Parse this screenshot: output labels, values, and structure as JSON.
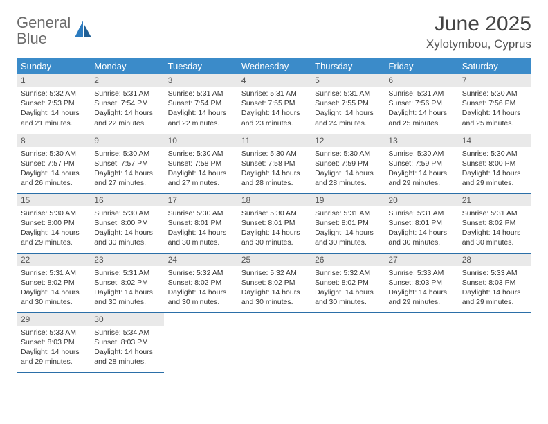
{
  "brand": {
    "word1": "General",
    "word2": "Blue"
  },
  "title": "June 2025",
  "location": "Xylotymbou, Cyprus",
  "colors": {
    "header_bg": "#3b8bc9",
    "header_text": "#ffffff",
    "daynum_bg": "#e9e9e9",
    "row_border": "#2b6fa8",
    "logo_gray": "#6b6b6b",
    "logo_blue": "#2b7bbf",
    "background": "#ffffff"
  },
  "typography": {
    "title_fontsize": 30,
    "location_fontsize": 17,
    "header_fontsize": 13,
    "daynum_fontsize": 12,
    "cell_fontsize": 10.5
  },
  "weekdays": [
    "Sunday",
    "Monday",
    "Tuesday",
    "Wednesday",
    "Thursday",
    "Friday",
    "Saturday"
  ],
  "weeks": [
    [
      {
        "day": "1",
        "sunrise": "Sunrise: 5:32 AM",
        "sunset": "Sunset: 7:53 PM",
        "daylight": "Daylight: 14 hours and 21 minutes."
      },
      {
        "day": "2",
        "sunrise": "Sunrise: 5:31 AM",
        "sunset": "Sunset: 7:54 PM",
        "daylight": "Daylight: 14 hours and 22 minutes."
      },
      {
        "day": "3",
        "sunrise": "Sunrise: 5:31 AM",
        "sunset": "Sunset: 7:54 PM",
        "daylight": "Daylight: 14 hours and 22 minutes."
      },
      {
        "day": "4",
        "sunrise": "Sunrise: 5:31 AM",
        "sunset": "Sunset: 7:55 PM",
        "daylight": "Daylight: 14 hours and 23 minutes."
      },
      {
        "day": "5",
        "sunrise": "Sunrise: 5:31 AM",
        "sunset": "Sunset: 7:55 PM",
        "daylight": "Daylight: 14 hours and 24 minutes."
      },
      {
        "day": "6",
        "sunrise": "Sunrise: 5:31 AM",
        "sunset": "Sunset: 7:56 PM",
        "daylight": "Daylight: 14 hours and 25 minutes."
      },
      {
        "day": "7",
        "sunrise": "Sunrise: 5:30 AM",
        "sunset": "Sunset: 7:56 PM",
        "daylight": "Daylight: 14 hours and 25 minutes."
      }
    ],
    [
      {
        "day": "8",
        "sunrise": "Sunrise: 5:30 AM",
        "sunset": "Sunset: 7:57 PM",
        "daylight": "Daylight: 14 hours and 26 minutes."
      },
      {
        "day": "9",
        "sunrise": "Sunrise: 5:30 AM",
        "sunset": "Sunset: 7:57 PM",
        "daylight": "Daylight: 14 hours and 27 minutes."
      },
      {
        "day": "10",
        "sunrise": "Sunrise: 5:30 AM",
        "sunset": "Sunset: 7:58 PM",
        "daylight": "Daylight: 14 hours and 27 minutes."
      },
      {
        "day": "11",
        "sunrise": "Sunrise: 5:30 AM",
        "sunset": "Sunset: 7:58 PM",
        "daylight": "Daylight: 14 hours and 28 minutes."
      },
      {
        "day": "12",
        "sunrise": "Sunrise: 5:30 AM",
        "sunset": "Sunset: 7:59 PM",
        "daylight": "Daylight: 14 hours and 28 minutes."
      },
      {
        "day": "13",
        "sunrise": "Sunrise: 5:30 AM",
        "sunset": "Sunset: 7:59 PM",
        "daylight": "Daylight: 14 hours and 29 minutes."
      },
      {
        "day": "14",
        "sunrise": "Sunrise: 5:30 AM",
        "sunset": "Sunset: 8:00 PM",
        "daylight": "Daylight: 14 hours and 29 minutes."
      }
    ],
    [
      {
        "day": "15",
        "sunrise": "Sunrise: 5:30 AM",
        "sunset": "Sunset: 8:00 PM",
        "daylight": "Daylight: 14 hours and 29 minutes."
      },
      {
        "day": "16",
        "sunrise": "Sunrise: 5:30 AM",
        "sunset": "Sunset: 8:00 PM",
        "daylight": "Daylight: 14 hours and 30 minutes."
      },
      {
        "day": "17",
        "sunrise": "Sunrise: 5:30 AM",
        "sunset": "Sunset: 8:01 PM",
        "daylight": "Daylight: 14 hours and 30 minutes."
      },
      {
        "day": "18",
        "sunrise": "Sunrise: 5:30 AM",
        "sunset": "Sunset: 8:01 PM",
        "daylight": "Daylight: 14 hours and 30 minutes."
      },
      {
        "day": "19",
        "sunrise": "Sunrise: 5:31 AM",
        "sunset": "Sunset: 8:01 PM",
        "daylight": "Daylight: 14 hours and 30 minutes."
      },
      {
        "day": "20",
        "sunrise": "Sunrise: 5:31 AM",
        "sunset": "Sunset: 8:01 PM",
        "daylight": "Daylight: 14 hours and 30 minutes."
      },
      {
        "day": "21",
        "sunrise": "Sunrise: 5:31 AM",
        "sunset": "Sunset: 8:02 PM",
        "daylight": "Daylight: 14 hours and 30 minutes."
      }
    ],
    [
      {
        "day": "22",
        "sunrise": "Sunrise: 5:31 AM",
        "sunset": "Sunset: 8:02 PM",
        "daylight": "Daylight: 14 hours and 30 minutes."
      },
      {
        "day": "23",
        "sunrise": "Sunrise: 5:31 AM",
        "sunset": "Sunset: 8:02 PM",
        "daylight": "Daylight: 14 hours and 30 minutes."
      },
      {
        "day": "24",
        "sunrise": "Sunrise: 5:32 AM",
        "sunset": "Sunset: 8:02 PM",
        "daylight": "Daylight: 14 hours and 30 minutes."
      },
      {
        "day": "25",
        "sunrise": "Sunrise: 5:32 AM",
        "sunset": "Sunset: 8:02 PM",
        "daylight": "Daylight: 14 hours and 30 minutes."
      },
      {
        "day": "26",
        "sunrise": "Sunrise: 5:32 AM",
        "sunset": "Sunset: 8:02 PM",
        "daylight": "Daylight: 14 hours and 30 minutes."
      },
      {
        "day": "27",
        "sunrise": "Sunrise: 5:33 AM",
        "sunset": "Sunset: 8:03 PM",
        "daylight": "Daylight: 14 hours and 29 minutes."
      },
      {
        "day": "28",
        "sunrise": "Sunrise: 5:33 AM",
        "sunset": "Sunset: 8:03 PM",
        "daylight": "Daylight: 14 hours and 29 minutes."
      }
    ],
    [
      {
        "day": "29",
        "sunrise": "Sunrise: 5:33 AM",
        "sunset": "Sunset: 8:03 PM",
        "daylight": "Daylight: 14 hours and 29 minutes."
      },
      {
        "day": "30",
        "sunrise": "Sunrise: 5:34 AM",
        "sunset": "Sunset: 8:03 PM",
        "daylight": "Daylight: 14 hours and 28 minutes."
      },
      null,
      null,
      null,
      null,
      null
    ]
  ]
}
